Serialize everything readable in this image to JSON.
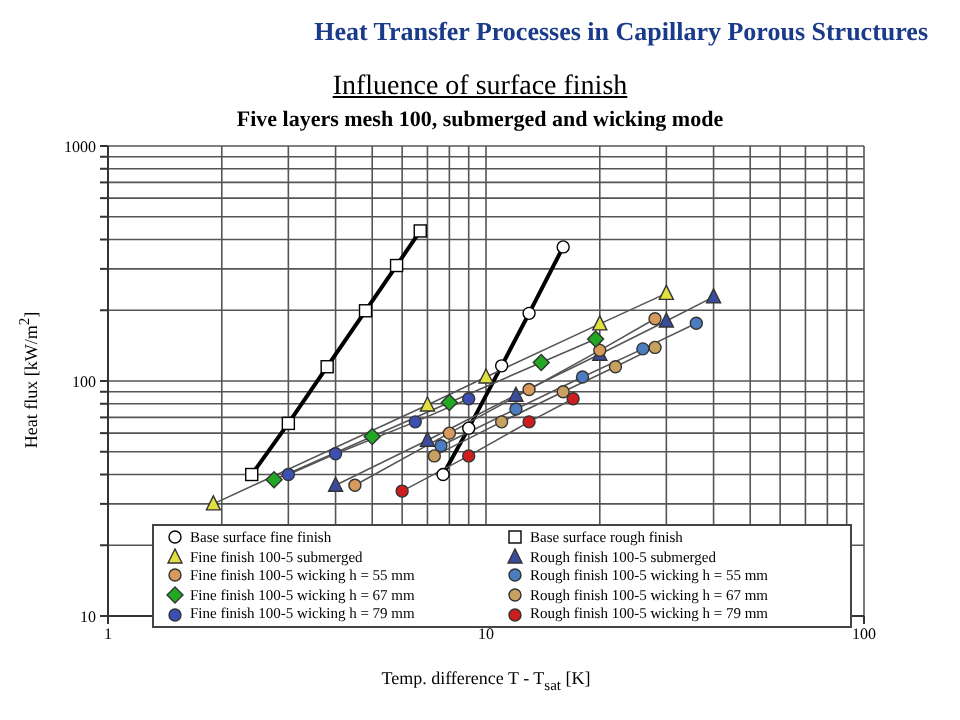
{
  "chart_data": {
    "type": "line",
    "title": "Influence of surface finish",
    "subtitle": "Five layers mesh 100, submerged and wicking mode",
    "annotations": [
      "Heat Transfer Processes in Capillary Porous Structures"
    ],
    "xlabel": "Temp. difference T - T$_{sat}$ [K]",
    "ylabel": "Heat flux [kW/m$^{2}$]",
    "log": "xy",
    "grid": true,
    "legend": "bottom",
    "xlim": [
      1,
      100
    ],
    "ylim": [
      10,
      1000
    ],
    "xticks": [
      1,
      {
        "value": 2,
        "label": null
      },
      {
        "value": 3,
        "label": null
      },
      {
        "value": 4,
        "label": null
      },
      {
        "value": 5,
        "label": null
      },
      {
        "value": 6,
        "label": null
      },
      {
        "value": 7,
        "label": null
      },
      {
        "value": 8,
        "label": null
      },
      {
        "value": 9,
        "label": null
      },
      10,
      {
        "value": 20,
        "label": null
      },
      {
        "value": 30,
        "label": null
      },
      {
        "value": 40,
        "label": null
      },
      {
        "value": 50,
        "label": null
      },
      {
        "value": 60,
        "label": null
      },
      {
        "value": 70,
        "label": null
      },
      {
        "value": 80,
        "label": null
      },
      {
        "value": 90,
        "label": null
      },
      100
    ],
    "yticks": [
      10,
      {
        "value": 20,
        "label": null
      },
      {
        "value": 30,
        "label": null
      },
      {
        "value": 40,
        "label": null
      },
      {
        "value": 50,
        "label": null
      },
      {
        "value": 60,
        "label": null
      },
      {
        "value": 70,
        "label": null
      },
      {
        "value": 80,
        "label": null
      },
      {
        "value": 90,
        "label": null
      },
      100,
      {
        "value": 200,
        "label": null
      },
      {
        "value": 300,
        "label": null
      },
      {
        "value": 400,
        "label": null
      },
      {
        "value": 500,
        "label": null
      },
      {
        "value": 600,
        "label": null
      },
      {
        "value": 700,
        "label": null
      },
      {
        "value": 800,
        "label": null
      },
      {
        "value": 900,
        "label": null
      },
      1000
    ],
    "series": [
      {
        "name": "Base surface fine finish",
        "color": "#000000",
        "marker": "circle",
        "x": [
          7.7,
          9,
          11,
          13,
          16
        ],
        "values": [
          40,
          63,
          116,
          194,
          372
        ]
      },
      {
        "name": "Base surface rough finish",
        "color": "#000000",
        "marker": "square",
        "x": [
          2.4,
          3,
          3.8,
          4.8,
          5.8,
          6.7
        ],
        "values": [
          40,
          66,
          115,
          199,
          310,
          435
        ]
      },
      {
        "name": "Fine finish 100-5 submerged",
        "color": "#e0e040",
        "marker": "triangle",
        "x": [
          1.9,
          7,
          10,
          20,
          30
        ],
        "values": [
          30,
          79,
          104,
          175,
          236
        ]
      },
      {
        "name": "Rough finish 100-5 submerged",
        "color": "#3c4c9c",
        "marker": "triangle",
        "x": [
          4,
          7,
          12,
          20,
          30,
          40
        ],
        "values": [
          36,
          56,
          87,
          130,
          180,
          228
        ]
      },
      {
        "name": "Fine finish 100-5 wicking h = 55 mm",
        "color": "#d89a5c",
        "marker": "circle",
        "x": [
          4.5,
          8,
          13,
          20,
          28
        ],
        "values": [
          36,
          60,
          92,
          135,
          184
        ]
      },
      {
        "name": "Rough finish 100-5 wicking h = 55 mm",
        "color": "#4c7cc0",
        "marker": "circle",
        "x": [
          7.6,
          12,
          18,
          26,
          36
        ],
        "values": [
          53,
          76,
          104,
          137,
          176
        ]
      },
      {
        "name": "Fine finish 100-5 wicking h = 67 mm",
        "color": "#22a822",
        "marker": "diamond",
        "x": [
          2.75,
          5,
          8,
          14,
          19.5
        ],
        "values": [
          38,
          58,
          81,
          120,
          151
        ]
      },
      {
        "name": "Rough finish 100-5 wicking h = 67 mm",
        "color": "#c8a060",
        "marker": "circle",
        "x": [
          7.3,
          11,
          16,
          22,
          28
        ],
        "values": [
          48,
          67,
          90,
          115,
          139
        ]
      },
      {
        "name": "Fine finish 100-5 wicking h = 79 mm",
        "color": "#3c50b4",
        "marker": "circle",
        "x": [
          3,
          4,
          6.5,
          9
        ],
        "values": [
          40,
          49,
          67,
          84
        ]
      },
      {
        "name": "Rough finish 100-5 wicking h = 79 mm",
        "color": "#cc1e1e",
        "marker": "circle",
        "x": [
          6,
          9,
          13,
          17
        ],
        "values": [
          34,
          48,
          67,
          84
        ]
      }
    ]
  }
}
